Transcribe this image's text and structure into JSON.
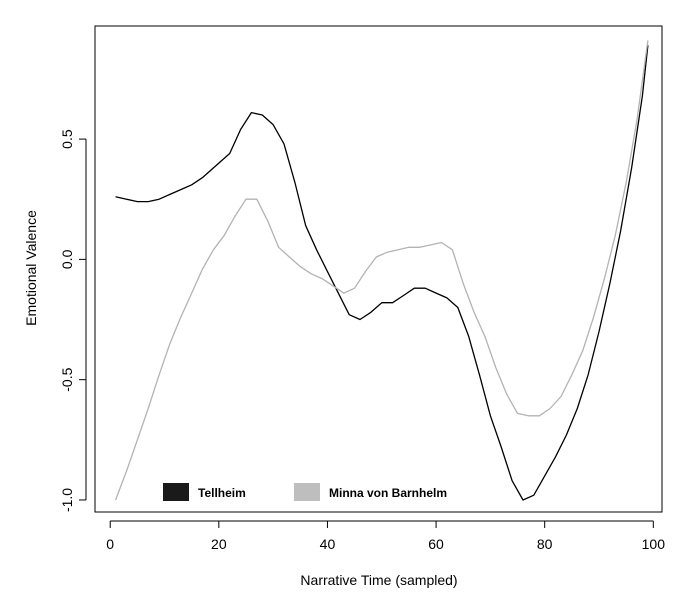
{
  "chart_data": {
    "type": "line",
    "xlabel": "Narrative Time (sampled)",
    "ylabel": "Emotional Valence",
    "xlim": [
      -2.8,
      101.6
    ],
    "ylim": [
      -1.05,
      0.97
    ],
    "xticks": [
      "0",
      "20",
      "40",
      "60",
      "80",
      "100"
    ],
    "yticks": [
      "-1.0",
      "-0.5",
      "0.0",
      "0.5"
    ],
    "grid": false,
    "legend_position": "bottom-left",
    "series": [
      {
        "name": "Tellheim",
        "color": "#000000",
        "legend_color": "#1a1a1a",
        "x": [
          1,
          3,
          5,
          7,
          9,
          11,
          13,
          15,
          17,
          20,
          22,
          24,
          26,
          28,
          30,
          32,
          34,
          36,
          38,
          40,
          42,
          44,
          46,
          48,
          50,
          52,
          54,
          56,
          58,
          60,
          62,
          64,
          66,
          68,
          70,
          72,
          74,
          76,
          78,
          80,
          82,
          84,
          86,
          88,
          90,
          92,
          94,
          96,
          98,
          99
        ],
        "y": [
          0.26,
          0.25,
          0.24,
          0.24,
          0.25,
          0.27,
          0.29,
          0.31,
          0.34,
          0.4,
          0.44,
          0.54,
          0.61,
          0.6,
          0.56,
          0.48,
          0.32,
          0.14,
          0.04,
          -0.05,
          -0.14,
          -0.23,
          -0.25,
          -0.22,
          -0.18,
          -0.18,
          -0.15,
          -0.12,
          -0.12,
          -0.14,
          -0.16,
          -0.2,
          -0.32,
          -0.48,
          -0.65,
          -0.78,
          -0.92,
          -1.0,
          -0.98,
          -0.9,
          -0.82,
          -0.73,
          -0.62,
          -0.48,
          -0.3,
          -0.1,
          0.12,
          0.38,
          0.68,
          0.89
        ]
      },
      {
        "name": "Minna von Barnhelm",
        "color": "#b3b3b3",
        "legend_color": "#bebebe",
        "x": [
          1,
          3,
          5,
          7,
          9,
          11,
          13,
          15,
          17,
          19,
          21,
          23,
          25,
          27,
          29,
          31,
          33,
          35,
          37,
          39,
          41,
          43,
          45,
          47,
          49,
          51,
          53,
          55,
          57,
          59,
          61,
          63,
          65,
          67,
          69,
          71,
          73,
          75,
          77,
          79,
          81,
          83,
          85,
          87,
          89,
          91,
          93,
          95,
          97,
          99
        ],
        "y": [
          -1.0,
          -0.88,
          -0.75,
          -0.62,
          -0.48,
          -0.35,
          -0.24,
          -0.14,
          -0.04,
          0.04,
          0.1,
          0.18,
          0.25,
          0.25,
          0.16,
          0.05,
          0.01,
          -0.03,
          -0.06,
          -0.08,
          -0.11,
          -0.14,
          -0.12,
          -0.05,
          0.01,
          0.03,
          0.04,
          0.05,
          0.05,
          0.06,
          0.07,
          0.04,
          -0.1,
          -0.22,
          -0.32,
          -0.45,
          -0.56,
          -0.64,
          -0.65,
          -0.65,
          -0.62,
          -0.57,
          -0.48,
          -0.38,
          -0.24,
          -0.08,
          0.1,
          0.32,
          0.58,
          0.91
        ]
      }
    ]
  }
}
